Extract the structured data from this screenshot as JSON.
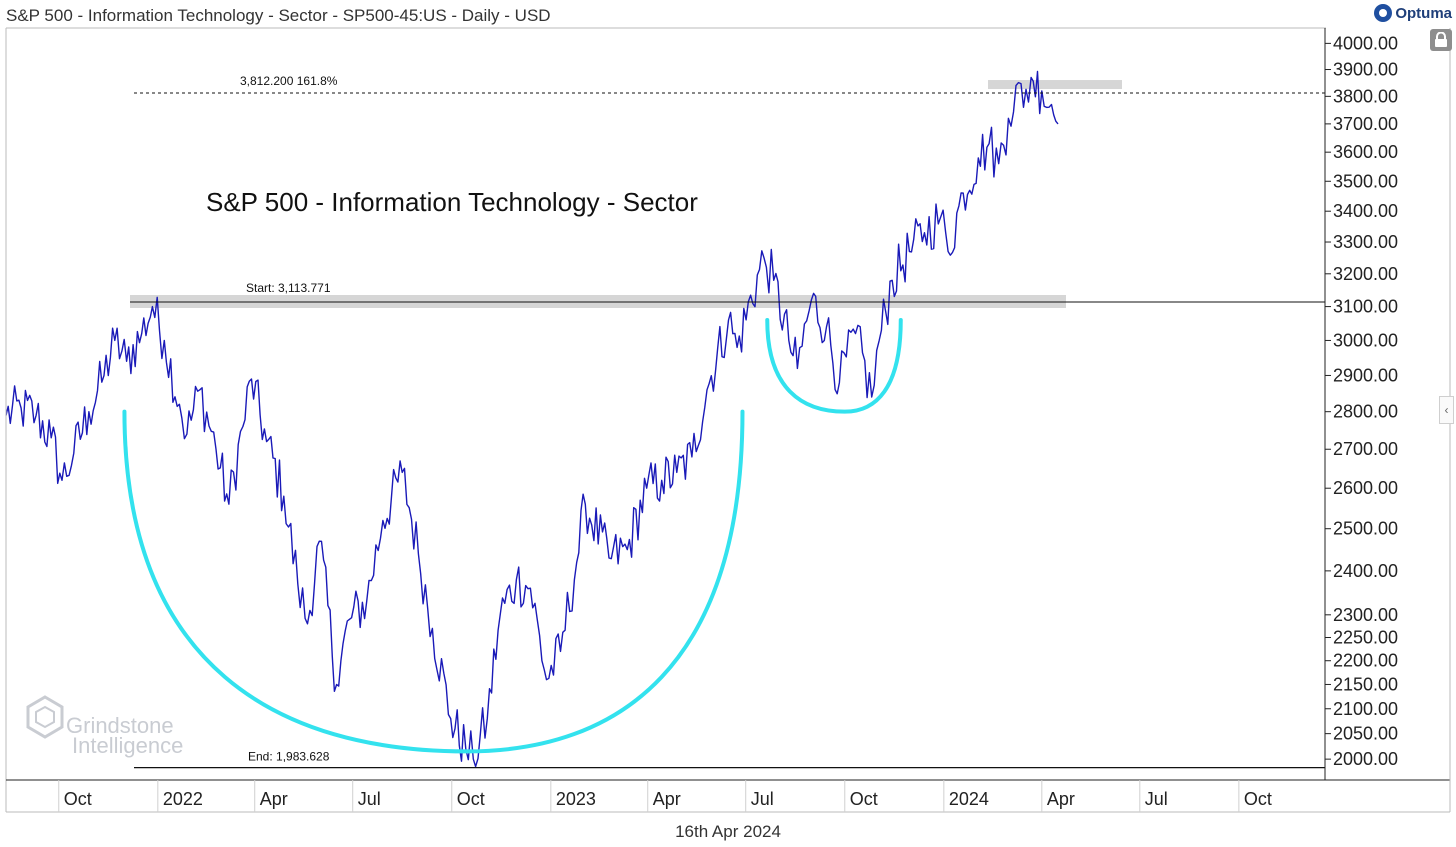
{
  "header": {
    "title": "S&P 500 - Information Technology - Sector - SP500-45:US - Daily - USD",
    "brand": "Optuma"
  },
  "icons": {
    "brand": "optuma-logo-icon",
    "lock": "lock-icon",
    "collapse": "chevron-left-icon"
  },
  "footer": {
    "date": "16th Apr 2024"
  },
  "watermark": {
    "line1": "Grindstone",
    "line2": "Intelligence"
  },
  "colors": {
    "price": "#1a1ab8",
    "arc": "#33e2ee",
    "band": "#d6d6d6",
    "grid_text": "#222222",
    "watermark": "#c9ccd2"
  },
  "chart_data": {
    "type": "line",
    "title": "S&P 500 - Information Technology - Sector",
    "symbol": "SP500-45:US",
    "interval": "Daily",
    "currency": "USD",
    "scale": "log",
    "grid": false,
    "xlim": [
      "2021-08-13",
      "2024-12-20"
    ],
    "ylim": [
      1960,
      4060
    ],
    "x_ticks": [
      "Oct",
      "2022",
      "Apr",
      "Jul",
      "Oct",
      "2023",
      "Apr",
      "Jul",
      "Oct",
      "2024",
      "Apr",
      "Jul",
      "Oct"
    ],
    "x_tick_dates": [
      "2021-10-01",
      "2022-01-01",
      "2022-04-01",
      "2022-07-01",
      "2022-10-01",
      "2023-01-01",
      "2023-04-01",
      "2023-07-01",
      "2023-10-01",
      "2024-01-01",
      "2024-04-01",
      "2024-07-01",
      "2024-10-01"
    ],
    "y_ticks": [
      "4000.00",
      "3900.00",
      "3800.00",
      "3700.00",
      "3600.00",
      "3500.00",
      "3400.00",
      "3300.00",
      "3200.00",
      "3100.00",
      "3000.00",
      "2900.00",
      "2800.00",
      "2700.00",
      "2600.00",
      "2500.00",
      "2400.00",
      "2300.00",
      "2250.00",
      "2200.00",
      "2150.00",
      "2100.00",
      "2050.00",
      "2000.00"
    ],
    "series": [
      {
        "values": [
          [
            "2021-08-13",
            2790
          ],
          [
            "2021-08-27",
            2810
          ],
          [
            "2021-09-10",
            2790
          ],
          [
            "2021-09-24",
            2730
          ],
          [
            "2021-10-04",
            2620
          ],
          [
            "2021-10-15",
            2690
          ],
          [
            "2021-10-29",
            2800
          ],
          [
            "2021-11-12",
            2900
          ],
          [
            "2021-11-22",
            3000
          ],
          [
            "2021-12-03",
            2940
          ],
          [
            "2021-12-17",
            3020
          ],
          [
            "2021-12-27",
            3100
          ],
          [
            "2022-01-07",
            3000
          ],
          [
            "2022-01-21",
            2820
          ],
          [
            "2022-01-28",
            2740
          ],
          [
            "2022-02-09",
            2860
          ],
          [
            "2022-02-24",
            2700
          ],
          [
            "2022-03-08",
            2560
          ],
          [
            "2022-03-21",
            2760
          ],
          [
            "2022-03-29",
            2890
          ],
          [
            "2022-04-12",
            2720
          ],
          [
            "2022-04-28",
            2580
          ],
          [
            "2022-05-11",
            2370
          ],
          [
            "2022-05-20",
            2280
          ],
          [
            "2022-05-31",
            2470
          ],
          [
            "2022-06-16",
            2150
          ],
          [
            "2022-06-28",
            2290
          ],
          [
            "2022-07-14",
            2330
          ],
          [
            "2022-07-29",
            2520
          ],
          [
            "2022-08-16",
            2640
          ],
          [
            "2022-08-31",
            2440
          ],
          [
            "2022-09-13",
            2270
          ],
          [
            "2022-09-30",
            2080
          ],
          [
            "2022-10-14",
            2020
          ],
          [
            "2022-10-21",
            2000
          ],
          [
            "2022-11-03",
            2080
          ],
          [
            "2022-11-15",
            2300
          ],
          [
            "2022-11-30",
            2380
          ],
          [
            "2022-12-13",
            2360
          ],
          [
            "2022-12-28",
            2160
          ],
          [
            "2023-01-10",
            2220
          ],
          [
            "2023-01-25",
            2420
          ],
          [
            "2023-02-02",
            2560
          ],
          [
            "2023-02-24",
            2430
          ],
          [
            "2023-03-13",
            2450
          ],
          [
            "2023-03-31",
            2600
          ],
          [
            "2023-04-14",
            2620
          ],
          [
            "2023-04-28",
            2640
          ],
          [
            "2023-05-12",
            2680
          ],
          [
            "2023-05-26",
            2860
          ],
          [
            "2023-06-15",
            3060
          ],
          [
            "2023-06-23",
            2980
          ],
          [
            "2023-07-18",
            3250
          ],
          [
            "2023-07-27",
            3180
          ],
          [
            "2023-08-10",
            3000
          ],
          [
            "2023-08-18",
            2920
          ],
          [
            "2023-08-31",
            3120
          ],
          [
            "2023-09-14",
            3040
          ],
          [
            "2023-09-26",
            2880
          ],
          [
            "2023-10-11",
            3020
          ],
          [
            "2023-10-26",
            2840
          ],
          [
            "2023-11-02",
            3000
          ],
          [
            "2023-11-14",
            3180
          ],
          [
            "2023-11-30",
            3270
          ],
          [
            "2023-12-14",
            3330
          ],
          [
            "2023-12-29",
            3380
          ],
          [
            "2024-01-05",
            3270
          ],
          [
            "2024-01-19",
            3460
          ],
          [
            "2024-02-02",
            3580
          ],
          [
            "2024-02-12",
            3630
          ],
          [
            "2024-02-21",
            3560
          ],
          [
            "2024-03-01",
            3720
          ],
          [
            "2024-03-08",
            3840
          ],
          [
            "2024-03-15",
            3760
          ],
          [
            "2024-03-22",
            3870
          ],
          [
            "2024-04-01",
            3820
          ],
          [
            "2024-04-10",
            3770
          ],
          [
            "2024-04-16",
            3700
          ]
        ]
      }
    ],
    "annotations": [
      {
        "label": "3,812.200   161.8%",
        "value": 3812.2,
        "style": "dashed"
      },
      {
        "label": "Start:   3,113.771",
        "value": 3113.771,
        "style": "solid-band"
      },
      {
        "label": "End:   1,983.628",
        "value": 1983.628,
        "style": "solid"
      }
    ],
    "pattern": "cup-and-handle",
    "arcs": [
      {
        "from": [
          "2021-12-01",
          2800
        ],
        "bottom": [
          "2022-10-15",
          2015
        ],
        "to": [
          "2023-06-28",
          2800
        ]
      },
      {
        "from": [
          "2023-07-21",
          3060
        ],
        "bottom": [
          "2023-10-01",
          2800
        ],
        "to": [
          "2023-11-22",
          3060
        ]
      }
    ]
  }
}
